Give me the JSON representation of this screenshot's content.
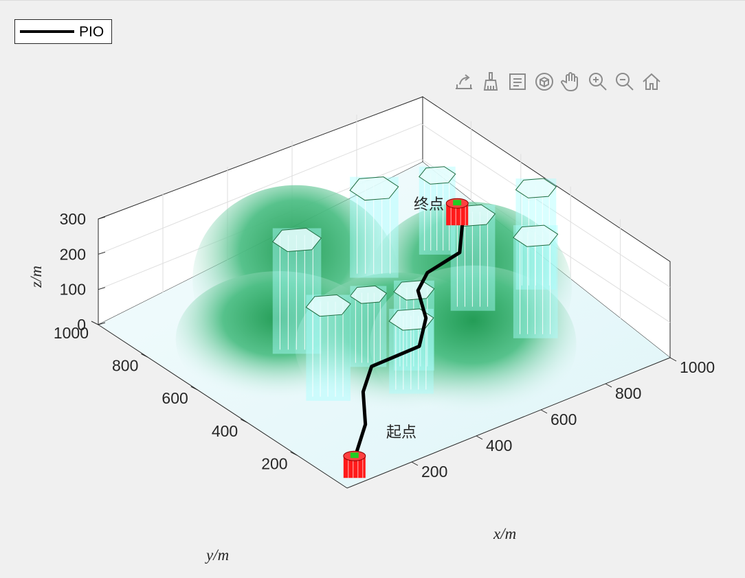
{
  "legend": {
    "label": "PIO"
  },
  "toolbar": {
    "buttons": [
      {
        "name": "export-icon"
      },
      {
        "name": "brush-icon"
      },
      {
        "name": "data-tips-icon"
      },
      {
        "name": "rotate-3d-icon"
      },
      {
        "name": "pan-icon"
      },
      {
        "name": "zoom-in-icon"
      },
      {
        "name": "zoom-out-icon"
      },
      {
        "name": "home-icon"
      }
    ]
  },
  "labels": {
    "start": "起点",
    "end": "终点"
  },
  "colors": {
    "path": "#000000",
    "marker_red": "#ff1a1a",
    "marker_green": "#22cc22",
    "obstacle_fill": "#aaffff",
    "obstacle_edge": "#1e6b3e",
    "terrain_peak": "#1f9a52",
    "terrain_base": "#e9f9fb"
  },
  "chart_data": {
    "type": "surface3d",
    "xlabel": "x/m",
    "ylabel": "y/m",
    "zlabel": "z/m",
    "xlim": [
      0,
      1000
    ],
    "ylim": [
      0,
      1000
    ],
    "zlim": [
      0,
      300
    ],
    "xticks": [
      "200",
      "400",
      "600",
      "800",
      "1000"
    ],
    "yticks": [
      "200",
      "400",
      "600",
      "800",
      "1000"
    ],
    "zticks": [
      "0",
      "100",
      "200",
      "300"
    ],
    "grid": true,
    "legend_location": "top-left",
    "series": [
      {
        "name": "PIO",
        "points": [
          [
            100,
            100,
            0
          ],
          [
            180,
            160,
            40
          ],
          [
            250,
            260,
            60
          ],
          [
            330,
            330,
            70
          ],
          [
            470,
            320,
            80
          ],
          [
            560,
            410,
            85
          ],
          [
            620,
            520,
            90
          ],
          [
            680,
            560,
            100
          ],
          [
            780,
            560,
            120
          ],
          [
            850,
            640,
            140
          ],
          [
            880,
            700,
            150
          ]
        ]
      }
    ],
    "terrain_peaks": [
      {
        "x": 380,
        "y": 700,
        "height": 280
      },
      {
        "x": 700,
        "y": 420,
        "height": 250
      },
      {
        "x": 220,
        "y": 560,
        "height": 180
      },
      {
        "x": 420,
        "y": 340,
        "height": 200
      },
      {
        "x": 560,
        "y": 220,
        "height": 220
      }
    ],
    "obstacles": [
      {
        "x": 330,
        "y": 630,
        "r": 60,
        "h": 290
      },
      {
        "x": 700,
        "y": 800,
        "r": 60,
        "h": 220
      },
      {
        "x": 420,
        "y": 460,
        "r": 45,
        "h": 180
      },
      {
        "x": 250,
        "y": 400,
        "r": 55,
        "h": 240
      },
      {
        "x": 500,
        "y": 380,
        "r": 50,
        "h": 200
      },
      {
        "x": 430,
        "y": 300,
        "r": 55,
        "h": 180
      },
      {
        "x": 790,
        "y": 520,
        "r": 55,
        "h": 240
      },
      {
        "x": 830,
        "y": 320,
        "r": 55,
        "h": 260
      },
      {
        "x": 970,
        "y": 500,
        "r": 50,
        "h": 260
      },
      {
        "x": 880,
        "y": 780,
        "r": 45,
        "h": 200
      }
    ],
    "start": {
      "x": 100,
      "y": 100,
      "z": 0
    },
    "end": {
      "x": 880,
      "y": 700,
      "z": 150
    }
  }
}
